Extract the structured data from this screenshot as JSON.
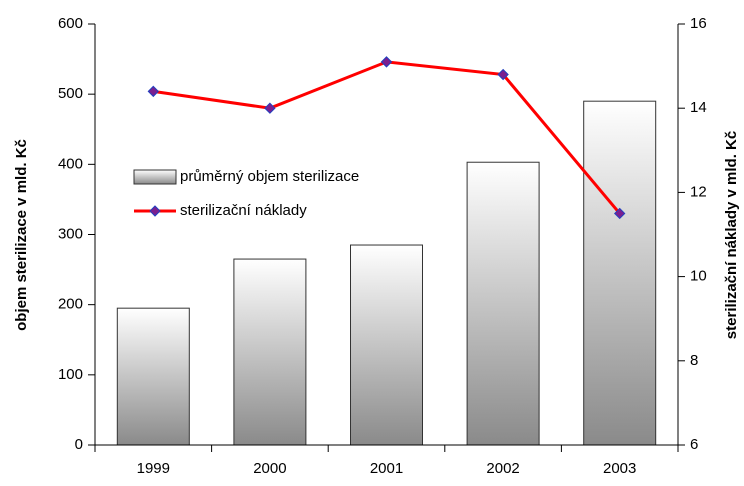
{
  "chart_data": {
    "type": "bar-line",
    "categories": [
      "1999",
      "2000",
      "2001",
      "2002",
      "2003"
    ],
    "series": [
      {
        "name": "průměrný objem sterilizace",
        "type": "bar",
        "color": "#8a8a8a",
        "values": [
          195,
          265,
          285,
          403,
          490
        ]
      },
      {
        "name": "sterilizační náklady",
        "type": "line",
        "axis": "y2",
        "color": "#ff0000",
        "marker_color": "#7a1f8f",
        "values": [
          14.4,
          14.0,
          15.1,
          14.8,
          11.5
        ]
      }
    ],
    "ylabel": "objem sterilizace v mld. Kč",
    "y2label": "sterilizační náklady v mld. Kč",
    "ylim": [
      0,
      600
    ],
    "yticks": [
      0,
      100,
      200,
      300,
      400,
      500,
      600
    ],
    "y2lim": [
      6,
      16
    ],
    "y2ticks": [
      6,
      8,
      10,
      12,
      14,
      16
    ]
  }
}
